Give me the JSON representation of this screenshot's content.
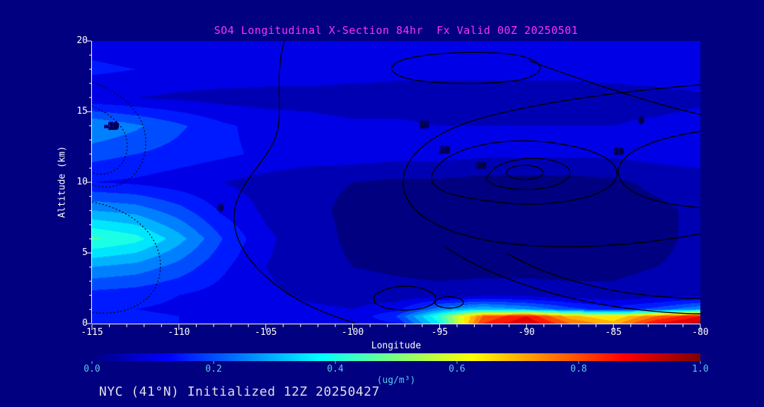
{
  "title": "SO4 Longitudinal X-Section 84hr  Fx Valid 00Z 20250501",
  "footer": "NYC (41°N) Initialized 12Z 20250427",
  "axes": {
    "x_label": "Longitude",
    "y_label": "Altitude (km)",
    "x_ticks": [
      -115,
      -110,
      -105,
      -100,
      -95,
      -90,
      -85,
      -80
    ],
    "y_ticks": [
      0,
      5,
      10,
      15,
      20
    ],
    "x_range": [
      -115,
      -80
    ],
    "y_range": [
      0,
      20
    ]
  },
  "colorbar": {
    "ticks": [
      "0.0",
      "0.2",
      "0.4",
      "0.6",
      "0.8",
      "1.0"
    ],
    "unit_label": "(ug/m³)",
    "range": [
      0,
      1
    ]
  },
  "colors": {
    "background": "#000080",
    "title_text": "#ff30ff",
    "axis_text": "#ffffff",
    "colorbar_text": "#55ccee",
    "contour_line": "#000000"
  },
  "chart_data": {
    "type": "heatmap",
    "title": "SO4 Longitudinal X-Section 84hr  Fx Valid 00Z 20250501",
    "xlabel": "Longitude",
    "ylabel": "Altitude (km)",
    "unit": "ug/m³",
    "colormap": "jet",
    "value_range": [
      0,
      1
    ],
    "fill_level_step": 0.05,
    "x": [
      -115,
      -112.5,
      -110,
      -107.5,
      -105,
      -102.5,
      -100,
      -97.5,
      -95,
      -92.5,
      -90,
      -87.5,
      -85,
      -82.5,
      -80
    ],
    "y": [
      0,
      0.5,
      1,
      2,
      4,
      6,
      8,
      10,
      12,
      14,
      16,
      18,
      20
    ],
    "values": [
      [
        0.17,
        0.16,
        0.15,
        0.13,
        0.12,
        0.11,
        0.11,
        0.15,
        0.4,
        0.85,
        0.95,
        0.8,
        0.72,
        0.9,
        0.97
      ],
      [
        0.17,
        0.16,
        0.15,
        0.13,
        0.12,
        0.11,
        0.11,
        0.2,
        0.45,
        0.8,
        0.9,
        0.72,
        0.65,
        0.8,
        0.9
      ],
      [
        0.16,
        0.15,
        0.14,
        0.13,
        0.12,
        0.11,
        0.1,
        0.13,
        0.28,
        0.35,
        0.3,
        0.22,
        0.17,
        0.22,
        0.3
      ],
      [
        0.18,
        0.17,
        0.15,
        0.13,
        0.11,
        0.09,
        0.08,
        0.07,
        0.07,
        0.08,
        0.08,
        0.07,
        0.06,
        0.07,
        0.08
      ],
      [
        0.3,
        0.28,
        0.23,
        0.16,
        0.1,
        0.07,
        0.05,
        0.04,
        0.03,
        0.03,
        0.03,
        0.03,
        0.04,
        0.05,
        0.06
      ],
      [
        0.46,
        0.42,
        0.32,
        0.2,
        0.11,
        0.07,
        0.04,
        0.03,
        0.03,
        0.03,
        0.03,
        0.03,
        0.03,
        0.04,
        0.06
      ],
      [
        0.3,
        0.28,
        0.22,
        0.14,
        0.09,
        0.06,
        0.04,
        0.03,
        0.03,
        0.03,
        0.03,
        0.03,
        0.03,
        0.04,
        0.06
      ],
      [
        0.15,
        0.14,
        0.12,
        0.1,
        0.08,
        0.06,
        0.05,
        0.04,
        0.04,
        0.03,
        0.03,
        0.03,
        0.04,
        0.06,
        0.07
      ],
      [
        0.22,
        0.2,
        0.18,
        0.16,
        0.14,
        0.13,
        0.13,
        0.12,
        0.12,
        0.11,
        0.11,
        0.11,
        0.11,
        0.12,
        0.13
      ],
      [
        0.3,
        0.26,
        0.21,
        0.16,
        0.13,
        0.12,
        0.11,
        0.11,
        0.1,
        0.1,
        0.1,
        0.1,
        0.1,
        0.11,
        0.12
      ],
      [
        0.11,
        0.1,
        0.09,
        0.08,
        0.08,
        0.08,
        0.07,
        0.07,
        0.07,
        0.07,
        0.07,
        0.07,
        0.08,
        0.08,
        0.09
      ],
      [
        0.16,
        0.15,
        0.14,
        0.14,
        0.13,
        0.13,
        0.13,
        0.12,
        0.12,
        0.12,
        0.12,
        0.12,
        0.12,
        0.13,
        0.14
      ],
      [
        0.13,
        0.12,
        0.12,
        0.11,
        0.11,
        0.11,
        0.11,
        0.1,
        0.1,
        0.1,
        0.1,
        0.1,
        0.1,
        0.11,
        0.12
      ]
    ],
    "contour_levels_labeled": [
      -10,
      0,
      10,
      20,
      30
    ],
    "contour_labels": [
      {
        "text": "-10",
        "lon": -113.9,
        "alt": 14.0
      },
      {
        "text": "0",
        "lon": -107.6,
        "alt": 8.2
      },
      {
        "text": "10",
        "lon": -95.9,
        "alt": 14.1
      },
      {
        "text": "20",
        "lon": -94.7,
        "alt": 12.3
      },
      {
        "text": "30",
        "lon": -92.6,
        "alt": 11.2
      },
      {
        "text": "10",
        "lon": -84.7,
        "alt": 12.2
      },
      {
        "text": "0",
        "lon": -83.4,
        "alt": 14.4
      }
    ]
  }
}
